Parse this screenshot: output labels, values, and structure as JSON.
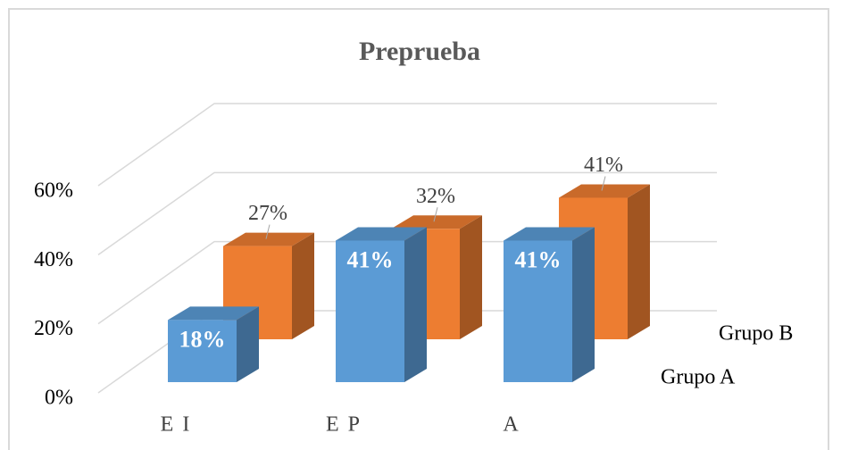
{
  "chart_data": {
    "type": "bar3d",
    "title": "Preprueba",
    "categories": [
      "E I",
      "E P",
      "A"
    ],
    "series": [
      {
        "name": "Grupo A",
        "color": "#5b9bd5",
        "values": [
          18,
          41,
          41
        ],
        "value_labels": [
          "18%",
          "41%",
          "41%"
        ]
      },
      {
        "name": "Grupo B",
        "color": "#ed7d31",
        "values": [
          27,
          32,
          41
        ],
        "value_labels": [
          "27%",
          "32%",
          "41%"
        ]
      }
    ],
    "ylim": [
      0,
      60
    ],
    "yticks": [
      {
        "value": 0,
        "label": "0%"
      },
      {
        "value": 20,
        "label": "20%"
      },
      {
        "value": 40,
        "label": "40%"
      },
      {
        "value": 60,
        "label": "60%"
      }
    ],
    "grid": true
  }
}
